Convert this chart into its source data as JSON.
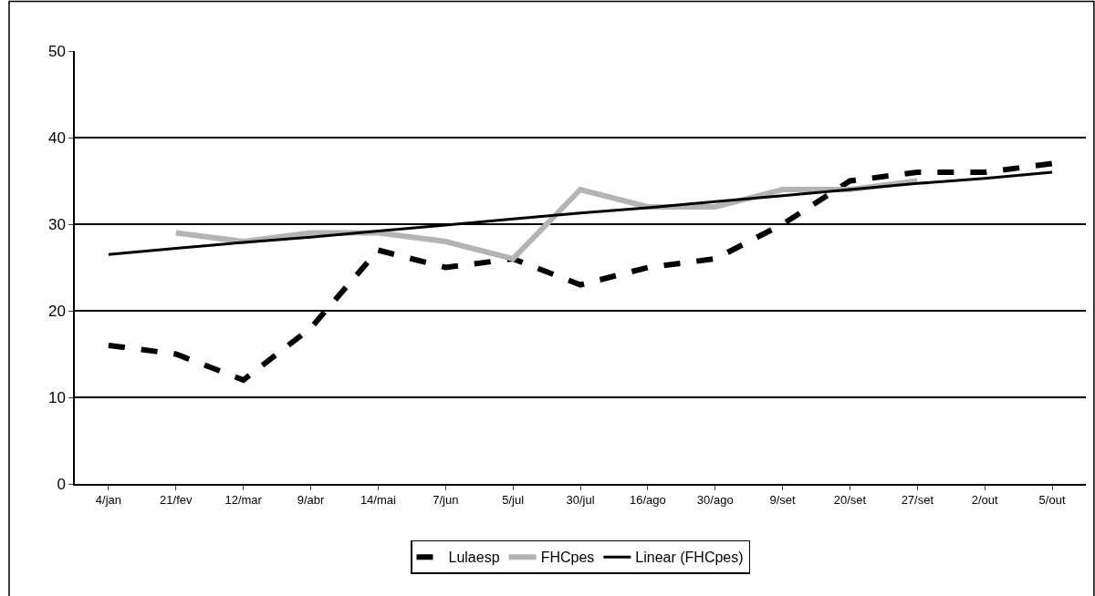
{
  "chart_data": {
    "type": "line",
    "categories": [
      "4/jan",
      "21/fev",
      "12/mar",
      "9/abr",
      "14/mai",
      "7/jun",
      "5/jul",
      "30/jul",
      "16/ago",
      "30/ago",
      "9/set",
      "20/set",
      "27/set",
      "2/out",
      "5/out"
    ],
    "series": [
      {
        "name": "Lulaesp",
        "color": "#000000",
        "line_style": "dashed",
        "values": [
          16,
          15,
          12,
          18,
          27,
          25,
          26,
          23,
          25,
          26,
          30,
          35,
          36,
          36,
          37
        ]
      },
      {
        "name": "FHCpes",
        "color": "#b4b4b4",
        "line_style": "solid",
        "values": [
          null,
          29,
          28,
          29,
          29,
          28,
          26,
          34,
          32,
          32,
          34,
          34,
          35,
          null,
          null
        ]
      },
      {
        "name": "Linear (FHCpes)",
        "color": "#000000",
        "line_style": "solid",
        "values": [
          26.5,
          27.2,
          27.9,
          28.5,
          29.2,
          29.9,
          30.6,
          31.3,
          31.9,
          32.6,
          33.3,
          34.0,
          34.7,
          35.3,
          36.0
        ]
      }
    ],
    "ylim": [
      0,
      50
    ],
    "yticks": [
      0,
      10,
      20,
      30,
      40,
      50
    ],
    "grid": "y",
    "legend": "bottom",
    "marker": "none"
  }
}
